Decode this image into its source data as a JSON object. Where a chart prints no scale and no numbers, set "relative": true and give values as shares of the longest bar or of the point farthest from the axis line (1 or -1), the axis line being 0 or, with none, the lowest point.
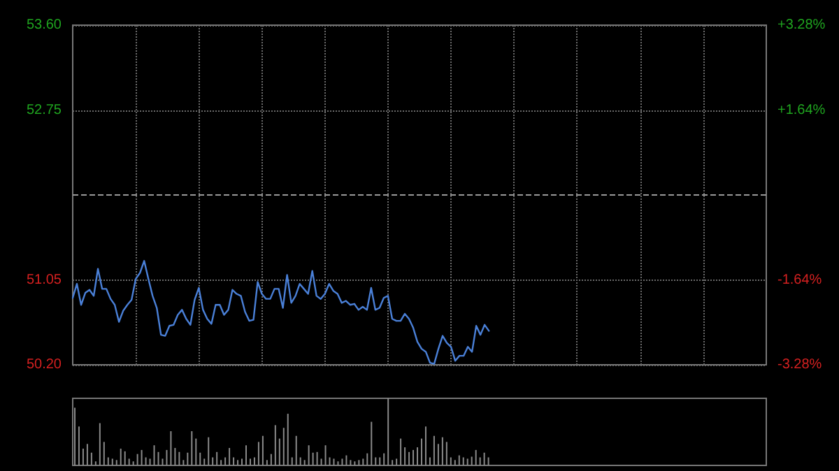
{
  "chart_data": [
    {
      "type": "line",
      "categories": [
        null,
        null,
        null,
        null,
        null,
        null,
        null,
        null,
        null,
        null,
        null,
        null,
        null,
        null,
        null,
        null,
        null,
        null,
        null,
        null,
        null,
        null,
        null,
        null,
        null,
        null,
        null,
        null,
        null,
        null,
        null,
        null,
        null,
        null,
        null,
        null,
        null,
        null,
        null,
        null,
        null,
        null,
        null,
        null,
        null,
        null,
        null,
        null,
        null,
        null,
        null,
        null,
        null,
        null,
        null,
        null,
        null,
        null,
        null,
        null,
        null,
        null,
        null,
        null,
        null,
        null,
        null,
        null,
        null,
        null,
        null,
        null,
        null,
        null,
        null,
        null,
        null,
        null,
        null,
        null,
        null,
        null,
        null,
        null,
        null,
        null,
        null,
        null,
        null,
        null,
        null,
        null,
        null,
        null,
        null,
        null,
        null,
        null,
        null,
        null,
        null,
        null,
        null,
        null,
        null,
        null,
        null,
        null,
        null,
        null,
        null,
        null,
        null,
        null,
        null,
        null,
        null,
        null,
        null,
        null,
        null,
        null,
        null,
        null,
        null,
        null,
        null,
        null,
        null,
        null,
        null,
        null,
        null,
        null,
        null,
        null,
        null,
        null,
        null,
        null,
        null,
        null,
        null,
        null,
        null,
        null,
        null,
        null,
        null,
        null,
        null,
        null,
        null,
        null,
        null,
        null,
        null,
        null,
        null,
        null,
        null,
        null,
        null,
        null,
        null,
        null
      ],
      "series": [
        {
          "color": "#4a80d8",
          "values": [
            50.87,
            51.01,
            50.8,
            50.92,
            50.95,
            50.89,
            51.16,
            50.96,
            50.96,
            50.86,
            50.8,
            50.63,
            50.74,
            50.8,
            50.85,
            51.06,
            51.12,
            51.24,
            51.06,
            50.89,
            50.77,
            50.5,
            50.49,
            50.59,
            50.6,
            50.7,
            50.75,
            50.66,
            50.6,
            50.85,
            50.97,
            50.75,
            50.66,
            50.61,
            50.8,
            50.8,
            50.7,
            50.75,
            50.95,
            50.91,
            50.89,
            50.73,
            50.64,
            50.65,
            51.03,
            50.91,
            50.86,
            50.86,
            50.96,
            50.96,
            50.77,
            51.1,
            50.82,
            50.89,
            51.01,
            50.96,
            50.91,
            51.14,
            50.89,
            50.86,
            50.91,
            51.01,
            50.94,
            50.91,
            50.82,
            50.84,
            50.8,
            50.81,
            50.75,
            50.78,
            50.75,
            50.97,
            50.75,
            50.77,
            50.87,
            50.89,
            50.66,
            50.64,
            50.64,
            50.71,
            50.66,
            50.57,
            50.43,
            50.36,
            50.33,
            50.22,
            50.21,
            50.36,
            50.49,
            50.42,
            50.38,
            50.24,
            50.29,
            50.29,
            50.38,
            50.33,
            50.59,
            50.5,
            50.6,
            50.54,
            null,
            null,
            null,
            null,
            null,
            null,
            null,
            null,
            null,
            null,
            null,
            null,
            null,
            null,
            null,
            null,
            null,
            null,
            null,
            null,
            null,
            null,
            null,
            null,
            null,
            null,
            null,
            null,
            null,
            null,
            null,
            null,
            null,
            null,
            null,
            null,
            null,
            null,
            null,
            null,
            null,
            null,
            null,
            null,
            null,
            null,
            null,
            null,
            null,
            null,
            null,
            null,
            null,
            null,
            null,
            null,
            null,
            null,
            null,
            null,
            null,
            null,
            null,
            null,
            null,
            null
          ]
        }
      ],
      "ylim": [
        50.2,
        53.6
      ],
      "yticks": [
        {
          "value": 50.2,
          "label": "50.20"
        },
        {
          "value": 51.05,
          "label": "51.05"
        },
        {
          "value": 52.75,
          "label": "52.75"
        },
        {
          "value": 53.6,
          "label": "53.60"
        }
      ],
      "y2lim": [
        -3.28,
        3.28
      ],
      "y2ticks": [
        {
          "value": -3.28,
          "label": "-3.28%"
        },
        {
          "value": -1.64,
          "label": "-1.64%"
        },
        {
          "value": 1.64,
          "label": "+1.64%"
        },
        {
          "value": 3.28,
          "label": "+3.28%"
        }
      ],
      "ref_lines": [
        {
          "axis": "y",
          "value": 51.9,
          "line_style": "dashed"
        }
      ],
      "grid": true,
      "tick_labels": "y",
      "line_style": "solid"
    },
    {
      "type": "bar",
      "relative": true,
      "tick_labels": false,
      "categories": [
        null,
        null,
        null,
        null,
        null,
        null,
        null,
        null,
        null,
        null,
        null,
        null,
        null,
        null,
        null,
        null,
        null,
        null,
        null,
        null,
        null,
        null,
        null,
        null,
        null,
        null,
        null,
        null,
        null,
        null,
        null,
        null,
        null,
        null,
        null,
        null,
        null,
        null,
        null,
        null,
        null,
        null,
        null,
        null,
        null,
        null,
        null,
        null,
        null,
        null,
        null,
        null,
        null,
        null,
        null,
        null,
        null,
        null,
        null,
        null,
        null,
        null,
        null,
        null,
        null,
        null,
        null,
        null,
        null,
        null,
        null,
        null,
        null,
        null,
        null,
        null,
        null,
        null,
        null,
        null,
        null,
        null,
        null,
        null,
        null,
        null,
        null,
        null,
        null,
        null,
        null,
        null,
        null,
        null,
        null,
        null,
        null,
        null,
        null,
        null,
        null,
        null,
        null,
        null,
        null,
        null,
        null,
        null,
        null,
        null,
        null,
        null,
        null,
        null,
        null,
        null,
        null,
        null,
        null,
        null,
        null,
        null,
        null,
        null,
        null,
        null,
        null,
        null,
        null,
        null,
        null,
        null,
        null,
        null,
        null,
        null,
        null,
        null,
        null,
        null,
        null,
        null,
        null,
        null,
        null,
        null,
        null,
        null,
        null,
        null,
        null,
        null,
        null,
        null,
        null,
        null,
        null,
        null,
        null,
        null,
        null,
        null,
        null,
        null,
        null,
        null
      ],
      "series": [
        {
          "color": "#8a8a8a",
          "values": [
            0.86,
            0.58,
            0.25,
            0.32,
            0.19,
            0.06,
            0.63,
            0.35,
            0.12,
            0.1,
            0.08,
            0.25,
            0.21,
            0.1,
            0.06,
            0.17,
            0.23,
            0.12,
            0.1,
            0.3,
            0.2,
            0.1,
            0.23,
            0.51,
            0.26,
            0.2,
            0.08,
            0.19,
            0.51,
            0.4,
            0.19,
            0.1,
            0.42,
            0.12,
            0.2,
            0.08,
            0.12,
            0.26,
            0.12,
            0.08,
            0.1,
            0.3,
            0.1,
            0.12,
            0.35,
            0.44,
            0.08,
            0.17,
            0.6,
            0.4,
            0.56,
            0.77,
            0.12,
            0.44,
            0.12,
            0.08,
            0.3,
            0.19,
            0.2,
            0.1,
            0.3,
            0.12,
            0.1,
            0.06,
            0.1,
            0.15,
            0.08,
            0.06,
            0.08,
            0.1,
            0.18,
            0.65,
            0.12,
            0.12,
            0.18,
            1,
            0.08,
            0.1,
            0.4,
            0.27,
            0.2,
            0.23,
            0.27,
            0.4,
            0.58,
            0.12,
            0.44,
            0.32,
            0.42,
            0.35,
            0.12,
            0.08,
            0.15,
            0.12,
            0.1,
            0.13,
            0.23,
            0.12,
            0.19,
            0.12,
            null,
            null,
            null,
            null,
            null,
            null,
            null,
            null,
            null,
            null,
            null,
            null,
            null,
            null,
            null,
            null,
            null,
            null,
            null,
            null,
            null,
            null,
            null,
            null,
            null,
            null,
            null,
            null,
            null,
            null,
            null,
            null,
            null,
            null,
            null,
            null,
            null,
            null,
            null,
            null,
            null,
            null,
            null,
            null,
            null,
            null,
            null,
            null,
            null,
            null,
            null,
            null,
            null,
            null,
            null,
            null,
            null,
            null,
            null,
            null,
            null,
            null,
            null,
            null,
            null,
            null
          ]
        }
      ]
    }
  ]
}
